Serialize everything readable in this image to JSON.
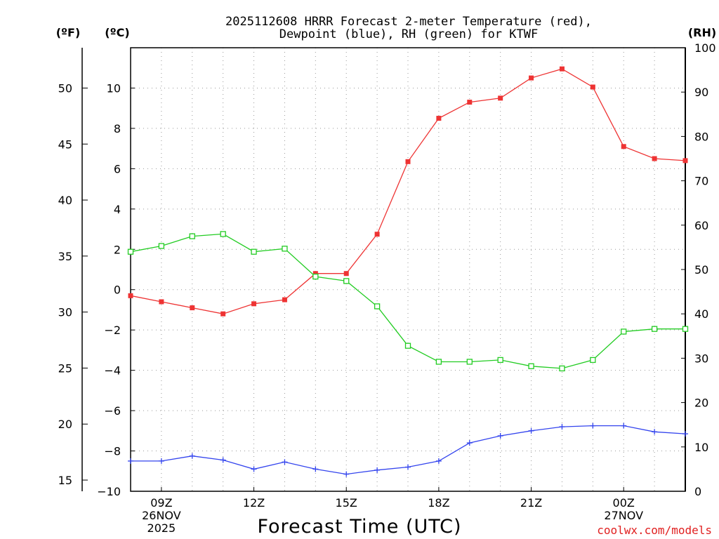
{
  "chart_data": {
    "type": "line",
    "title": [
      "2025112608 HRRR Forecast 2-meter Temperature (red),",
      "Dewpoint (blue), RH (green) for KTWF"
    ],
    "xlabel": "Forecast Time (UTC)",
    "credit": "coolwx.com/models",
    "units": {
      "fahrenheit": "(ºF)",
      "celsius": "(ºC)",
      "rh": "(RH)"
    },
    "x_hours": [
      8,
      9,
      10,
      11,
      12,
      13,
      14,
      15,
      16,
      17,
      18,
      19,
      20,
      21,
      22,
      23,
      24,
      25,
      26
    ],
    "x_ticks": [
      {
        "hour": 9,
        "lines": [
          "09Z",
          "26NOV",
          "2025"
        ]
      },
      {
        "hour": 12,
        "lines": [
          "12Z"
        ]
      },
      {
        "hour": 15,
        "lines": [
          "15Z"
        ]
      },
      {
        "hour": 18,
        "lines": [
          "18Z"
        ]
      },
      {
        "hour": 21,
        "lines": [
          "21Z"
        ]
      },
      {
        "hour": 24,
        "lines": [
          "00Z",
          "27NOV"
        ]
      }
    ],
    "xlim": [
      8,
      26
    ],
    "celsius_axis": {
      "ylim": [
        -10,
        12
      ],
      "ticks": [
        "10",
        "8",
        "6",
        "4",
        "2",
        "0",
        "−2",
        "−4",
        "−6",
        "−8",
        "−10"
      ]
    },
    "fahrenheit_axis": {
      "ylim": [
        14,
        53.6
      ],
      "ticks": [
        "50",
        "45",
        "40",
        "35",
        "30",
        "25",
        "20",
        "15"
      ]
    },
    "rh_axis": {
      "ylim": [
        0,
        100
      ],
      "ticks": [
        "100",
        "90",
        "80",
        "70",
        "60",
        "50",
        "40",
        "30",
        "20",
        "10",
        "0"
      ]
    },
    "series": [
      {
        "name": "Temperature",
        "unit": "C",
        "color": "#ee3333",
        "marker": "filled-square",
        "values": [
          -0.3,
          -0.6,
          -0.9,
          -1.2,
          -0.7,
          -0.5,
          0.8,
          0.8,
          2.75,
          6.35,
          8.5,
          9.3,
          9.5,
          10.5,
          10.95,
          10.05,
          7.1,
          6.5,
          6.4
        ]
      },
      {
        "name": "Dewpoint",
        "unit": "C",
        "color": "#3344ee",
        "marker": "plus",
        "values": [
          -8.5,
          -8.5,
          -8.25,
          -8.45,
          -8.9,
          -8.55,
          -8.9,
          -9.15,
          -8.95,
          -8.8,
          -8.5,
          -7.6,
          -7.25,
          -7.0,
          -6.8,
          -6.75,
          -6.75,
          -7.05,
          -7.15
        ]
      },
      {
        "name": "RH",
        "unit": "%",
        "color": "#22cc22",
        "marker": "open-square",
        "values": [
          54,
          55.3,
          57.5,
          58,
          54,
          54.7,
          48.4,
          47.4,
          41.7,
          32.8,
          29.2,
          29.2,
          29.6,
          28.2,
          27.7,
          29.6,
          36,
          36.6,
          36.6
        ]
      }
    ]
  }
}
